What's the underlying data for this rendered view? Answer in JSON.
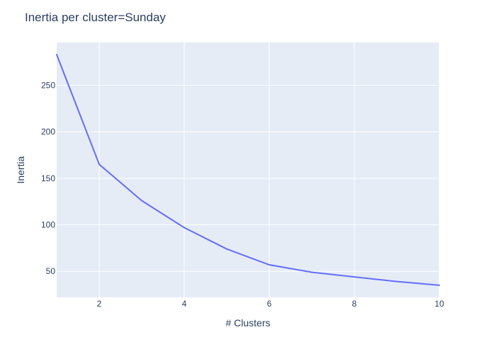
{
  "chart_data": {
    "type": "line",
    "title": "Inertia per cluster=Sunday",
    "xlabel": "# Clusters",
    "ylabel": "Inertia",
    "x": [
      1,
      2,
      3,
      4,
      5,
      6,
      7,
      8,
      9,
      10
    ],
    "series": [
      {
        "values": [
          283,
          165,
          126,
          97,
          74,
          57,
          49,
          44,
          39,
          35
        ]
      }
    ],
    "xlim": [
      1,
      10
    ],
    "ylim": [
      22,
      296
    ],
    "xticks": [
      2,
      4,
      6,
      8,
      10
    ],
    "yticks": [
      50,
      100,
      150,
      200,
      250
    ],
    "xtick_labels": [
      "2",
      "4",
      "6",
      "8",
      "10"
    ],
    "ytick_labels": [
      "50",
      "100",
      "150",
      "200",
      "250"
    ],
    "grid": true,
    "legend": "none",
    "colors": {
      "plot_background": "#e5ecf6",
      "grid": "#ffffff",
      "line": "#636efa",
      "text": "#2a3f5f"
    }
  }
}
